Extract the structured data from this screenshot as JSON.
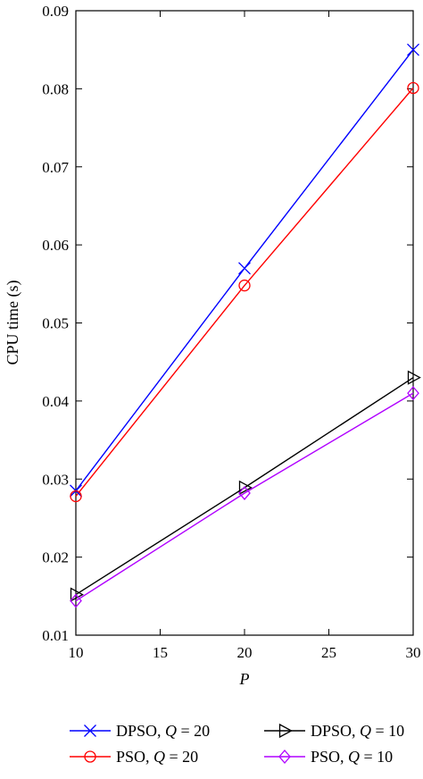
{
  "chart_data": {
    "type": "line",
    "xlabel": "P",
    "ylabel": "CPU time (s)",
    "xlim": [
      10,
      30
    ],
    "ylim": [
      0.01,
      0.09
    ],
    "xticks": [
      10,
      15,
      20,
      25,
      30
    ],
    "yticks": [
      0.01,
      0.02,
      0.03,
      0.04,
      0.05,
      0.06,
      0.07,
      0.08,
      0.09
    ],
    "x": [
      10,
      20,
      30
    ],
    "grid": false,
    "legend_position": "bottom",
    "series": [
      {
        "name": "DPSO, Q = 20",
        "name_prefix": "DPSO, ",
        "name_var": "Q",
        "name_suffix": " = 20",
        "values": [
          0.0285,
          0.057,
          0.085
        ],
        "color": "#0000ff",
        "marker": "x"
      },
      {
        "name": "PSO, Q = 20",
        "name_prefix": "PSO, ",
        "name_var": "Q",
        "name_suffix": " = 20",
        "values": [
          0.0278,
          0.0548,
          0.0801
        ],
        "color": "#ff0000",
        "marker": "circle"
      },
      {
        "name": "DPSO, Q = 10",
        "name_prefix": "DPSO, ",
        "name_var": "Q",
        "name_suffix": " = 10",
        "values": [
          0.0152,
          0.0289,
          0.043
        ],
        "color": "#000000",
        "marker": "triangle-right"
      },
      {
        "name": "PSO, Q = 10",
        "name_prefix": "PSO, ",
        "name_var": "Q",
        "name_suffix": " = 10",
        "values": [
          0.0144,
          0.0282,
          0.041
        ],
        "color": "#b000ff",
        "marker": "diamond"
      }
    ]
  }
}
